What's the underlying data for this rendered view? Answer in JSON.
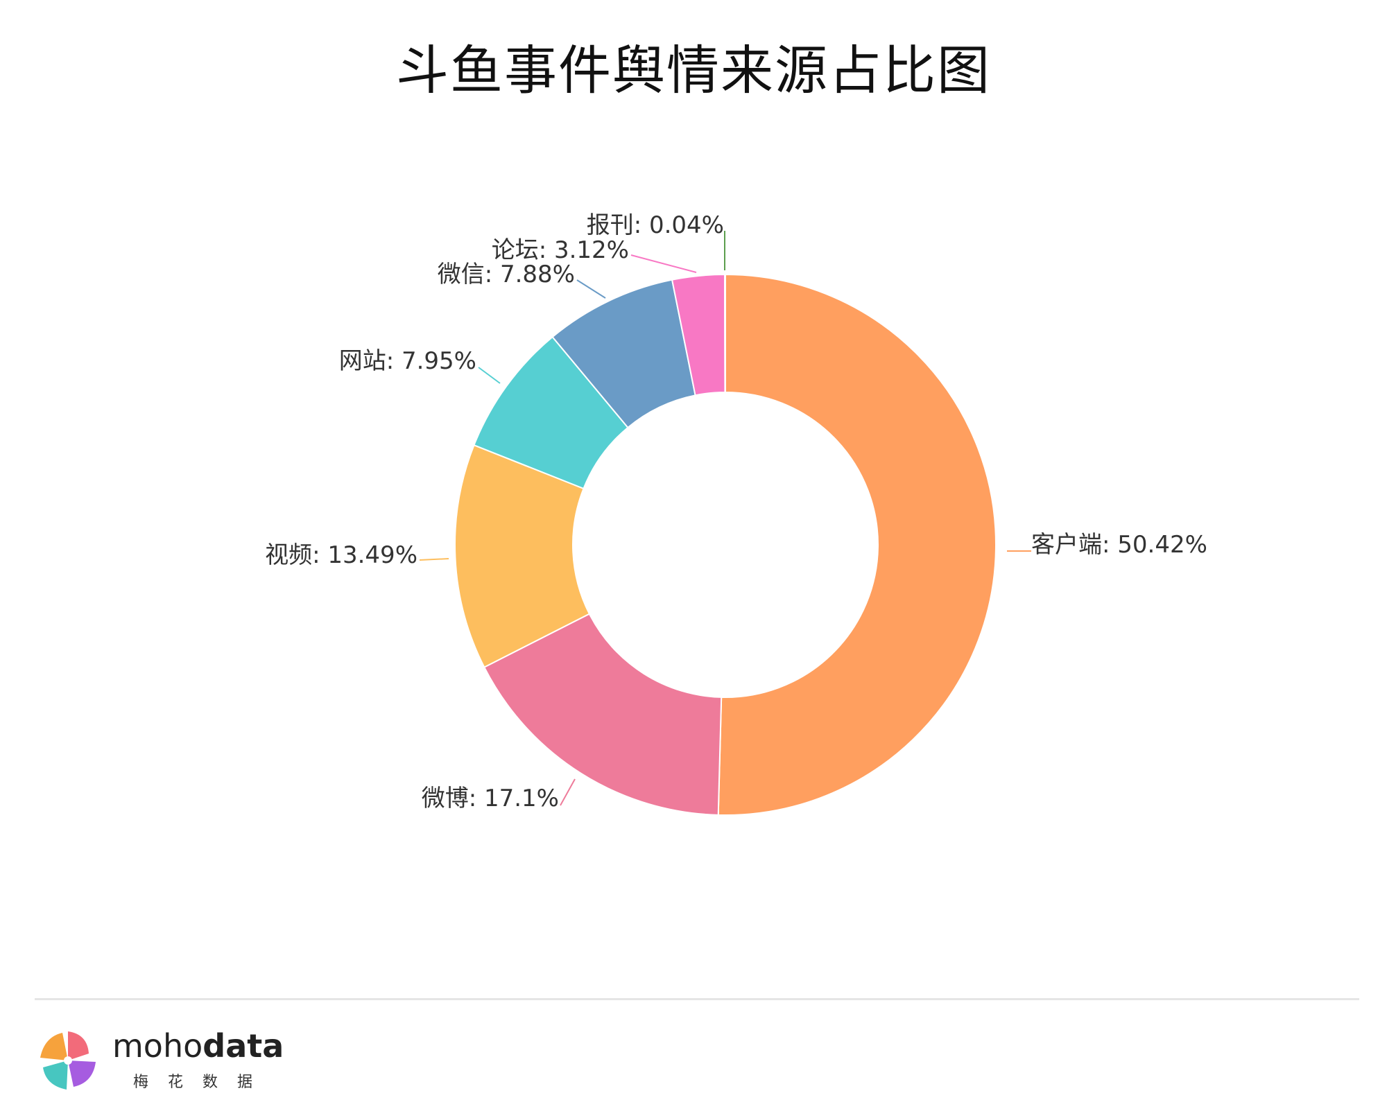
{
  "chart_data": {
    "type": "pie",
    "title": "斗鱼事件舆情来源占比图",
    "donut": true,
    "slices": [
      {
        "label": "客户端",
        "value": 50.42,
        "display": "客户端: 50.42%",
        "color": "#FF9F5F"
      },
      {
        "label": "微博",
        "value": 17.1,
        "display": "微博: 17.1%",
        "color": "#EE7B9A"
      },
      {
        "label": "视频",
        "value": 13.49,
        "display": "视频: 13.49%",
        "color": "#FDBE5E"
      },
      {
        "label": "网站",
        "value": 7.95,
        "display": "网站: 7.95%",
        "color": "#56CFD2"
      },
      {
        "label": "微信",
        "value": 7.88,
        "display": "微信: 7.88%",
        "color": "#6A9BC6"
      },
      {
        "label": "论坛",
        "value": 3.12,
        "display": "论坛: 3.12%",
        "color": "#F878C4"
      },
      {
        "label": "报刊",
        "value": 0.04,
        "display": "报刊: 0.04%",
        "color": "#5C9E4E"
      }
    ]
  },
  "footer": {
    "brand_light": "moho",
    "brand_bold": "data",
    "brand_sub": "梅花数据"
  }
}
